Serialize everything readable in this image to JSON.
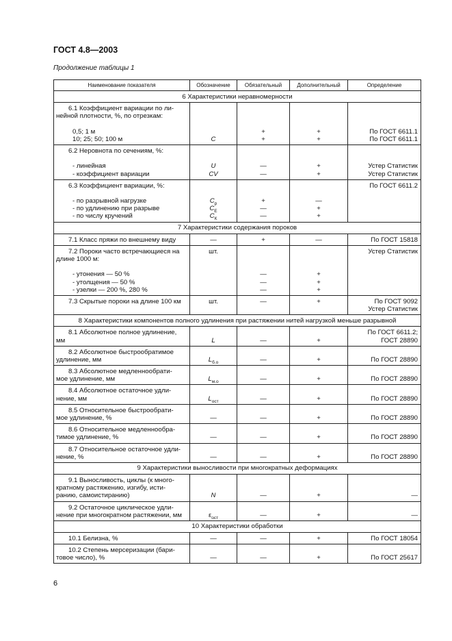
{
  "header": {
    "doc_title": "ГОСТ 4.8—2003",
    "continuation": "Продолжение таблицы 1"
  },
  "columns": [
    "Наименование показателя",
    "Обозначение",
    "Обязательный",
    "Дополнительный",
    "Определение"
  ],
  "rows": [
    {
      "section": "6  Характеристики неравномерности"
    },
    {
      "name": [
        "6.1 Коэффициент вариации по ли-",
        "нейной плотности, %, по отрезкам:",
        "",
        "0,5; 1 м",
        "10; 25; 50; 100 м"
      ],
      "symbol": [
        "",
        "",
        "",
        "",
        {
          "b": "C"
        }
      ],
      "req": [
        "",
        "",
        "",
        "+",
        "+"
      ],
      "opt": [
        "",
        "",
        "",
        "+",
        "+"
      ],
      "def": [
        "",
        "",
        "",
        "По ГОСТ 6611.1",
        "По ГОСТ 6611.1"
      ]
    },
    {
      "name": [
        "6.2  Неровнота по сечениям, %:",
        "",
        "- линейная",
        "- коэффициент вариации"
      ],
      "symbol": [
        "",
        "",
        {
          "b": "U"
        },
        {
          "b": "CV"
        }
      ],
      "req": [
        "",
        "",
        "—",
        "—"
      ],
      "opt": [
        "",
        "",
        "+",
        "+"
      ],
      "def": [
        "",
        "",
        "Устер Статистик",
        "Устер Статистик"
      ]
    },
    {
      "name": [
        "6.3  Коэффициент вариации, %:",
        "",
        "- по разрывной нагрузке",
        "- по удлинению при разрыве",
        "- по числу кручений"
      ],
      "symbol": [
        "",
        "",
        {
          "b": "C",
          "s": "р"
        },
        {
          "b": "C",
          "s": "E"
        },
        {
          "b": "C",
          "s": "К"
        }
      ],
      "req": [
        "",
        "",
        "+",
        "—",
        "—"
      ],
      "opt": [
        "",
        "",
        "—",
        "+",
        "+"
      ],
      "def": [
        "По ГОСТ 6611.2",
        "",
        "",
        "",
        ""
      ]
    },
    {
      "section": "7  Характеристики содержания пороков"
    },
    {
      "name": [
        "7.1  Класс пряжи по внешнему виду"
      ],
      "symbol": [
        "—"
      ],
      "req": [
        "+"
      ],
      "opt": [
        "—"
      ],
      "def": [
        "По ГОСТ 15818"
      ]
    },
    {
      "name": [
        "7.2  Пороки часто встречающиеся на",
        "длине 1000 м:",
        "",
        "- утонения — 50 %",
        "- утолщения — 50 %",
        "- узелки — 200 %, 280 %"
      ],
      "symbol": [
        "шт.",
        "",
        "",
        "",
        "",
        ""
      ],
      "req": [
        "",
        "",
        "",
        "—",
        "—",
        "—"
      ],
      "opt": [
        "",
        "",
        "",
        "+",
        "+",
        "+"
      ],
      "def": [
        "Устер Статистик",
        "",
        "",
        "",
        "",
        ""
      ]
    },
    {
      "name": [
        "7.3  Скрытые пороки на длине 100 км",
        ""
      ],
      "symbol": [
        "шт.",
        ""
      ],
      "req": [
        "—",
        ""
      ],
      "opt": [
        "+",
        ""
      ],
      "def": [
        "По ГОСТ 9092",
        "Устер Статистик"
      ]
    },
    {
      "section": "8  Характеристики компонентов полного удлинения при растяжении нитей нагрузкой меньше разрывной"
    },
    {
      "name": [
        "8.1  Абсолютное  полное  удлинение,",
        "мм"
      ],
      "symbol": [
        "",
        {
          "b": "L"
        }
      ],
      "req": [
        "",
        "—"
      ],
      "opt": [
        "",
        "+"
      ],
      "def": [
        "По ГОСТ 6611.2;",
        "ГОСТ 28890"
      ]
    },
    {
      "name": [
        "8.2  Абсолютное    быстрообратимое",
        "удлинение, мм"
      ],
      "symbol": [
        "",
        {
          "b": "L",
          "s": "б.о"
        }
      ],
      "req": [
        "",
        "—"
      ],
      "opt": [
        "",
        "+"
      ],
      "def": [
        "",
        "По ГОСТ 28890"
      ]
    },
    {
      "name": [
        "8.3  Абсолютное    медленнообрати-",
        "мое удлинение, мм"
      ],
      "symbol": [
        "",
        {
          "b": "L",
          "s": "м.о"
        }
      ],
      "req": [
        "",
        "—"
      ],
      "opt": [
        "",
        "+"
      ],
      "def": [
        "",
        "По ГОСТ 28890"
      ]
    },
    {
      "name": [
        "8.4  Абсолютное   остаточное   удли-",
        "нение, мм"
      ],
      "symbol": [
        "",
        {
          "b": "L",
          "s": "ост"
        }
      ],
      "req": [
        "",
        "—"
      ],
      "opt": [
        "",
        "+"
      ],
      "def": [
        "",
        "По ГОСТ 28890"
      ]
    },
    {
      "name": [
        "8.5  Относительное    быстрообрати-",
        "мое удлинение, %"
      ],
      "symbol": [
        "",
        "—"
      ],
      "req": [
        "",
        "—"
      ],
      "opt": [
        "",
        "+"
      ],
      "def": [
        "",
        "По ГОСТ 28890"
      ]
    },
    {
      "name": [
        "8.6  Относительное   медленнообра-",
        "тимое удлинение, %"
      ],
      "symbol": [
        "",
        "—"
      ],
      "req": [
        "",
        "—"
      ],
      "opt": [
        "",
        "+"
      ],
      "def": [
        "",
        "По ГОСТ 28890"
      ]
    },
    {
      "name": [
        "8.7  Относительное остаточное удли-",
        "нение, %"
      ],
      "symbol": [
        "",
        "—"
      ],
      "req": [
        "",
        "—"
      ],
      "opt": [
        "",
        "+"
      ],
      "def": [
        "",
        "По ГОСТ 28890"
      ]
    },
    {
      "section": "9  Характеристики выносливости при многократных деформациях"
    },
    {
      "name": [
        "9.1  Выносливость,  циклы  (к  много-",
        "кратному   растяжению,   изгибу,   исти-",
        "ранию, самоистиранию)"
      ],
      "symbol": [
        "",
        "",
        {
          "b": "N"
        }
      ],
      "req": [
        "",
        "",
        "—"
      ],
      "opt": [
        "",
        "",
        "+"
      ],
      "def": [
        "",
        "",
        "—"
      ]
    },
    {
      "name": [
        "9.2  Остаточное  циклическое  удли-",
        "нение при многократном растяжении, мм"
      ],
      "symbol": [
        "",
        {
          "b": "ε",
          "s": "ост",
          "n": true
        }
      ],
      "req": [
        "",
        "—"
      ],
      "opt": [
        "",
        "+"
      ],
      "def": [
        "",
        "—"
      ]
    },
    {
      "section": "10  Характеристики обработки"
    },
    {
      "name": [
        "10.1  Белизна, %"
      ],
      "symbol": [
        "—"
      ],
      "req": [
        "—"
      ],
      "opt": [
        "+"
      ],
      "def": [
        "По ГОСТ 18054"
      ]
    },
    {
      "name": [
        "10.2  Степень  мерсеризации  (бари-",
        "товое число), %"
      ],
      "symbol": [
        "",
        "—"
      ],
      "req": [
        "",
        "—"
      ],
      "opt": [
        "",
        "+"
      ],
      "def": [
        "",
        "По ГОСТ 25617"
      ]
    }
  ],
  "footer": {
    "page_number": "6"
  }
}
